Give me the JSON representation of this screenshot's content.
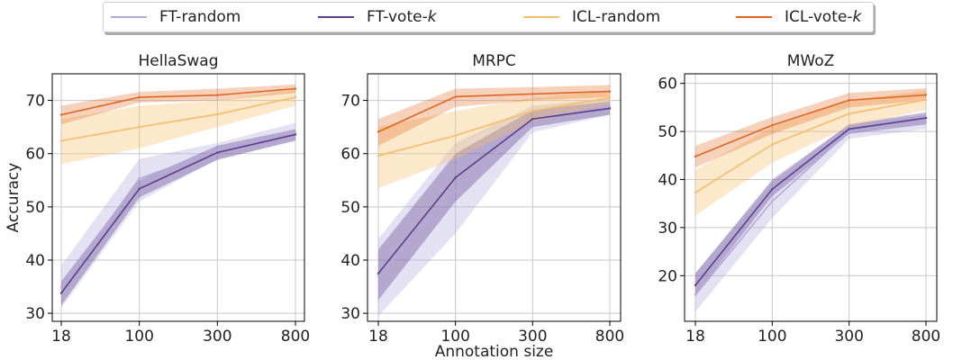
{
  "chart_data": [
    {
      "type": "line",
      "title": "HellaSwag",
      "ylabel": "Accuracy",
      "xlabel": "",
      "x": [
        "18",
        "100",
        "300",
        "800"
      ],
      "ylim": [
        28.5,
        75
      ],
      "yticks": [
        30,
        40,
        50,
        60,
        70
      ],
      "grid": true,
      "series": [
        {
          "name": "FT-random",
          "values": [
            35.0,
            55.3,
            60.6,
            64.0
          ],
          "lower": [
            31.0,
            51.0,
            59.0,
            62.3
          ],
          "upper": [
            39.0,
            59.0,
            62.0,
            65.8
          ]
        },
        {
          "name": "FT-vote-k",
          "values": [
            33.8,
            53.4,
            60.2,
            63.6
          ],
          "lower": [
            31.5,
            51.8,
            58.8,
            62.5
          ],
          "upper": [
            36.0,
            55.0,
            61.5,
            64.6
          ]
        },
        {
          "name": "ICL-random",
          "values": [
            62.4,
            65.0,
            67.4,
            70.6
          ],
          "lower": [
            58.0,
            61.0,
            65.0,
            69.0
          ],
          "upper": [
            66.5,
            69.0,
            70.0,
            72.0
          ]
        },
        {
          "name": "ICL-vote-k",
          "values": [
            67.3,
            70.6,
            71.0,
            72.2
          ],
          "lower": [
            65.5,
            69.6,
            70.0,
            71.4
          ],
          "upper": [
            69.0,
            71.6,
            72.2,
            73.0
          ]
        }
      ]
    },
    {
      "type": "line",
      "title": "MRPC",
      "ylabel": "",
      "xlabel": "Annotation size",
      "x": [
        "18",
        "100",
        "300",
        "800"
      ],
      "ylim": [
        28.5,
        75
      ],
      "yticks": [
        30,
        40,
        50,
        60,
        70
      ],
      "grid": true,
      "series": [
        {
          "name": "FT-random",
          "values": [
            37.0,
            53.0,
            66.5,
            68.8
          ],
          "lower": [
            29.5,
            45.0,
            64.0,
            67.3
          ],
          "upper": [
            44.0,
            62.0,
            69.0,
            70.4
          ]
        },
        {
          "name": "FT-vote-k",
          "values": [
            37.5,
            55.5,
            66.5,
            68.5
          ],
          "lower": [
            32.5,
            51.0,
            65.0,
            67.3
          ],
          "upper": [
            42.0,
            60.0,
            68.2,
            69.8
          ]
        },
        {
          "name": "ICL-random",
          "values": [
            59.6,
            63.4,
            68.0,
            70.5
          ],
          "lower": [
            53.5,
            59.0,
            66.0,
            69.2
          ],
          "upper": [
            65.0,
            68.0,
            70.5,
            71.8
          ]
        },
        {
          "name": "ICL-vote-k",
          "values": [
            64.1,
            70.7,
            71.2,
            71.7
          ],
          "lower": [
            61.5,
            68.8,
            70.0,
            70.6
          ],
          "upper": [
            66.5,
            72.2,
            72.5,
            72.9
          ]
        }
      ]
    },
    {
      "type": "line",
      "title": "MWoZ",
      "ylabel": "",
      "xlabel": "",
      "x": [
        "18",
        "100",
        "300",
        "800"
      ],
      "ylim": [
        10.5,
        62
      ],
      "yticks": [
        20,
        30,
        40,
        50,
        60
      ],
      "grid": true,
      "series": [
        {
          "name": "FT-random",
          "values": [
            16.0,
            35.5,
            50.0,
            52.0
          ],
          "lower": [
            12.5,
            32.0,
            48.5,
            50.5
          ],
          "upper": [
            20.5,
            39.5,
            51.5,
            53.5
          ]
        },
        {
          "name": "FT-vote-k",
          "values": [
            18.0,
            38.0,
            50.5,
            52.8
          ],
          "lower": [
            16.0,
            36.5,
            49.5,
            51.5
          ],
          "upper": [
            20.5,
            40.0,
            51.5,
            54.0
          ]
        },
        {
          "name": "ICL-random",
          "values": [
            37.3,
            47.3,
            53.7,
            56.6
          ],
          "lower": [
            32.5,
            43.5,
            51.0,
            54.5
          ],
          "upper": [
            42.0,
            51.0,
            56.5,
            58.5
          ]
        },
        {
          "name": "ICL-vote-k",
          "values": [
            44.8,
            51.3,
            56.5,
            57.6
          ],
          "lower": [
            42.5,
            49.5,
            55.0,
            56.5
          ],
          "upper": [
            47.0,
            53.0,
            58.0,
            59.0
          ]
        }
      ]
    }
  ],
  "legend": {
    "placement": "top-center",
    "entries": [
      {
        "name": "FT-random",
        "label": "FT-random"
      },
      {
        "name": "FT-vote-k",
        "label": "FT-vote-",
        "italic_suffix": "k"
      },
      {
        "name": "ICL-random",
        "label": "ICL-random"
      },
      {
        "name": "ICL-vote-k",
        "label": "ICL-vote-",
        "italic_suffix": "k"
      }
    ]
  },
  "colors": {
    "FT-random": "#b3a8d9",
    "FT-vote-k": "#5b3f8c",
    "ICL-random": "#f5bd6b",
    "ICL-vote-k": "#e0661f"
  }
}
